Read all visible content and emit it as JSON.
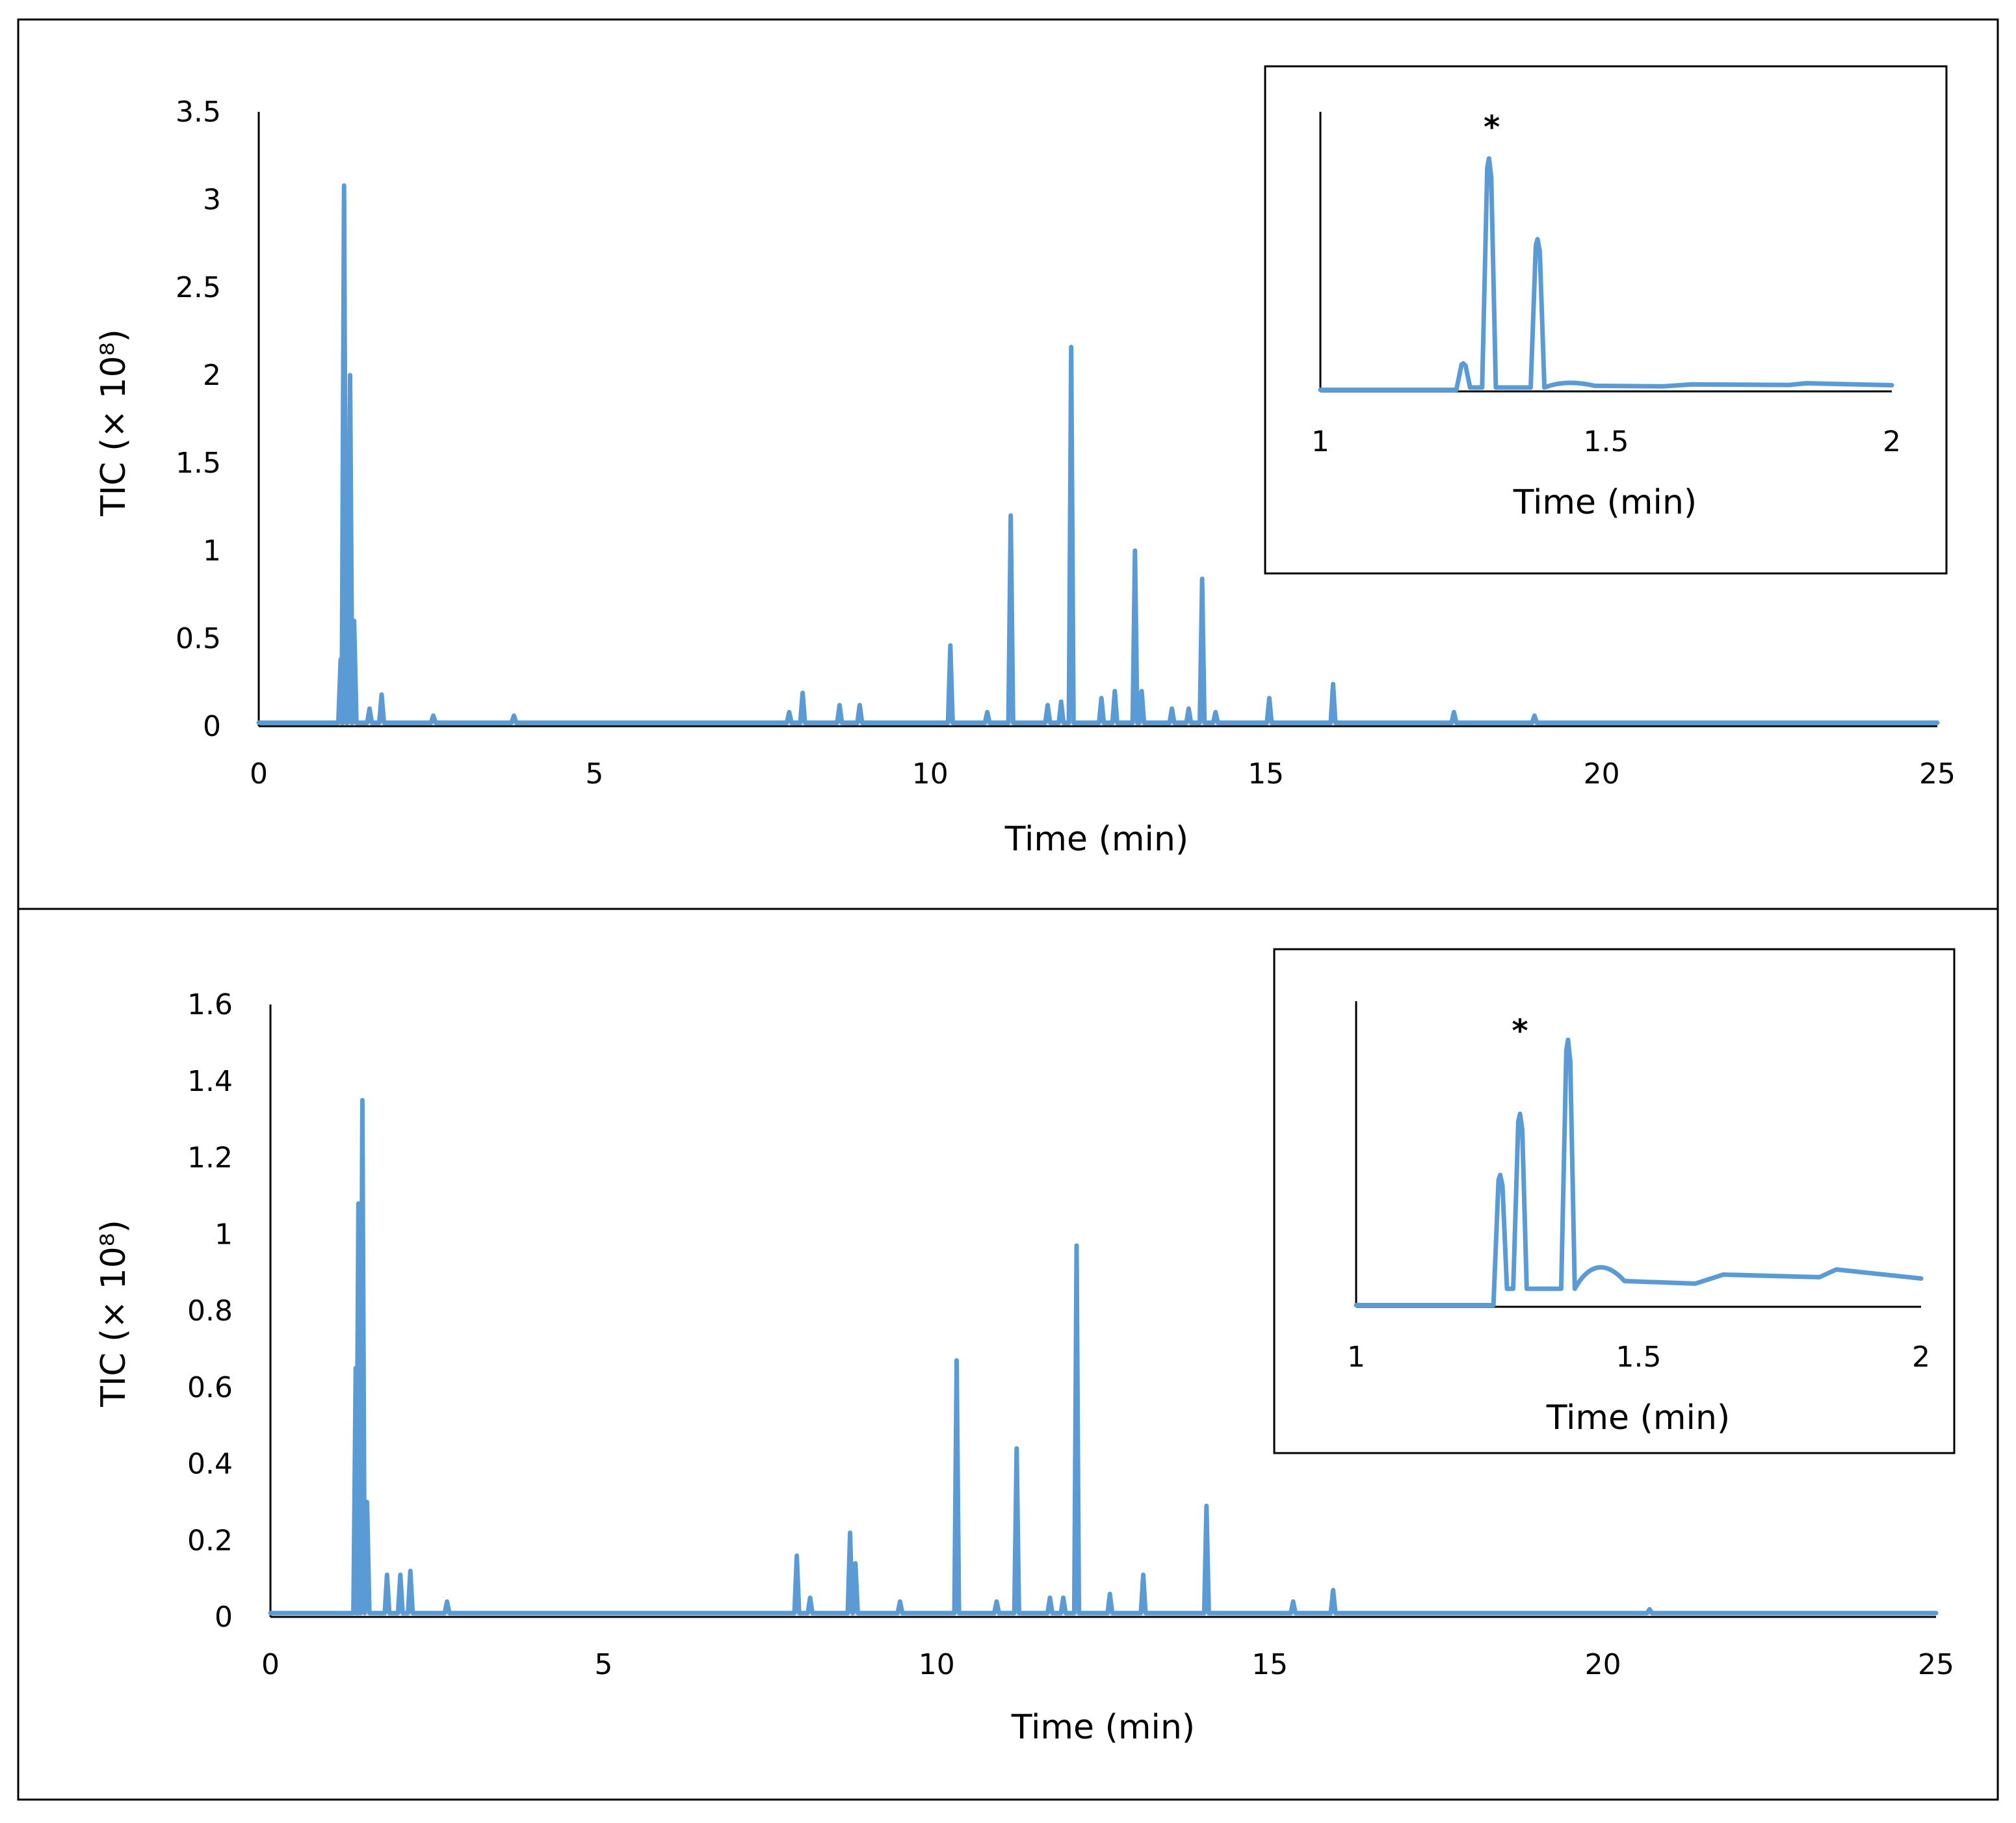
{
  "chart_data": [
    {
      "type": "line",
      "panel": "top",
      "xlabel": "Time (min)",
      "ylabel": "TIC (× 10⁸)",
      "xlim": [
        0,
        25
      ],
      "ylim": [
        0,
        3.5
      ],
      "x_ticks": [
        "0",
        "5",
        "10",
        "15",
        "20",
        "25"
      ],
      "y_ticks": [
        "0",
        "0.5",
        "1",
        "1.5",
        "2",
        "2.5",
        "3",
        "3.5"
      ],
      "baseline": 0.02,
      "peaks": [
        {
          "x": 1.22,
          "y": 0.38
        },
        {
          "x": 1.27,
          "y": 3.08
        },
        {
          "x": 1.36,
          "y": 2.0
        },
        {
          "x": 1.42,
          "y": 0.6
        },
        {
          "x": 1.65,
          "y": 0.1
        },
        {
          "x": 1.83,
          "y": 0.18
        },
        {
          "x": 2.6,
          "y": 0.06
        },
        {
          "x": 3.8,
          "y": 0.06
        },
        {
          "x": 7.9,
          "y": 0.08
        },
        {
          "x": 8.1,
          "y": 0.19
        },
        {
          "x": 8.65,
          "y": 0.12
        },
        {
          "x": 8.95,
          "y": 0.12
        },
        {
          "x": 10.3,
          "y": 0.46
        },
        {
          "x": 10.85,
          "y": 0.08
        },
        {
          "x": 11.2,
          "y": 1.2
        },
        {
          "x": 11.75,
          "y": 0.12
        },
        {
          "x": 11.95,
          "y": 0.14
        },
        {
          "x": 12.1,
          "y": 2.16
        },
        {
          "x": 12.55,
          "y": 0.16
        },
        {
          "x": 12.75,
          "y": 0.2
        },
        {
          "x": 13.05,
          "y": 1.0
        },
        {
          "x": 13.15,
          "y": 0.2
        },
        {
          "x": 13.6,
          "y": 0.1
        },
        {
          "x": 13.85,
          "y": 0.1
        },
        {
          "x": 14.05,
          "y": 0.84
        },
        {
          "x": 14.25,
          "y": 0.08
        },
        {
          "x": 15.05,
          "y": 0.16
        },
        {
          "x": 16.0,
          "y": 0.24
        },
        {
          "x": 17.8,
          "y": 0.08
        },
        {
          "x": 19.0,
          "y": 0.06
        }
      ],
      "inset": {
        "xlabel": "Time (min)",
        "xlim": [
          1,
          2
        ],
        "x_ticks": [
          "1",
          "1.5",
          "2"
        ],
        "marker": "*",
        "marker_x": 1.3,
        "peaks": [
          {
            "x": 1.25,
            "y": 0.09
          },
          {
            "x": 1.295,
            "y": 0.75
          },
          {
            "x": 1.38,
            "y": 0.49
          }
        ]
      }
    },
    {
      "type": "line",
      "panel": "bottom",
      "xlabel": "Time (min)",
      "ylabel": "TIC (× 10⁸)",
      "xlim": [
        0,
        25
      ],
      "ylim": [
        0,
        1.6
      ],
      "x_ticks": [
        "0",
        "5",
        "10",
        "15",
        "20",
        "25"
      ],
      "y_ticks": [
        "0",
        "0.2",
        "0.4",
        "0.6",
        "0.8",
        "1",
        "1.2",
        "1.4",
        "1.6"
      ],
      "baseline": 0.01,
      "peaks": [
        {
          "x": 1.28,
          "y": 0.65
        },
        {
          "x": 1.32,
          "y": 1.08
        },
        {
          "x": 1.38,
          "y": 1.35
        },
        {
          "x": 1.45,
          "y": 0.3
        },
        {
          "x": 1.75,
          "y": 0.11
        },
        {
          "x": 1.95,
          "y": 0.11
        },
        {
          "x": 2.1,
          "y": 0.12
        },
        {
          "x": 2.65,
          "y": 0.04
        },
        {
          "x": 7.9,
          "y": 0.16
        },
        {
          "x": 8.1,
          "y": 0.05
        },
        {
          "x": 8.7,
          "y": 0.22
        },
        {
          "x": 8.78,
          "y": 0.14
        },
        {
          "x": 9.45,
          "y": 0.04
        },
        {
          "x": 10.3,
          "y": 0.67
        },
        {
          "x": 10.9,
          "y": 0.04
        },
        {
          "x": 11.2,
          "y": 0.44
        },
        {
          "x": 11.7,
          "y": 0.05
        },
        {
          "x": 11.9,
          "y": 0.05
        },
        {
          "x": 12.1,
          "y": 0.97
        },
        {
          "x": 12.6,
          "y": 0.06
        },
        {
          "x": 13.1,
          "y": 0.11
        },
        {
          "x": 14.05,
          "y": 0.29
        },
        {
          "x": 15.35,
          "y": 0.04
        },
        {
          "x": 15.95,
          "y": 0.07
        },
        {
          "x": 20.7,
          "y": 0.02
        }
      ],
      "inset": {
        "xlabel": "Time (min)",
        "xlim": [
          1,
          2
        ],
        "x_ticks": [
          "1",
          "1.5",
          "2"
        ],
        "marker": "*",
        "marker_x": 1.29,
        "peaks": [
          {
            "x": 1.255,
            "y": 0.41
          },
          {
            "x": 1.29,
            "y": 0.6
          },
          {
            "x": 1.375,
            "y": 0.83
          }
        ]
      }
    }
  ]
}
